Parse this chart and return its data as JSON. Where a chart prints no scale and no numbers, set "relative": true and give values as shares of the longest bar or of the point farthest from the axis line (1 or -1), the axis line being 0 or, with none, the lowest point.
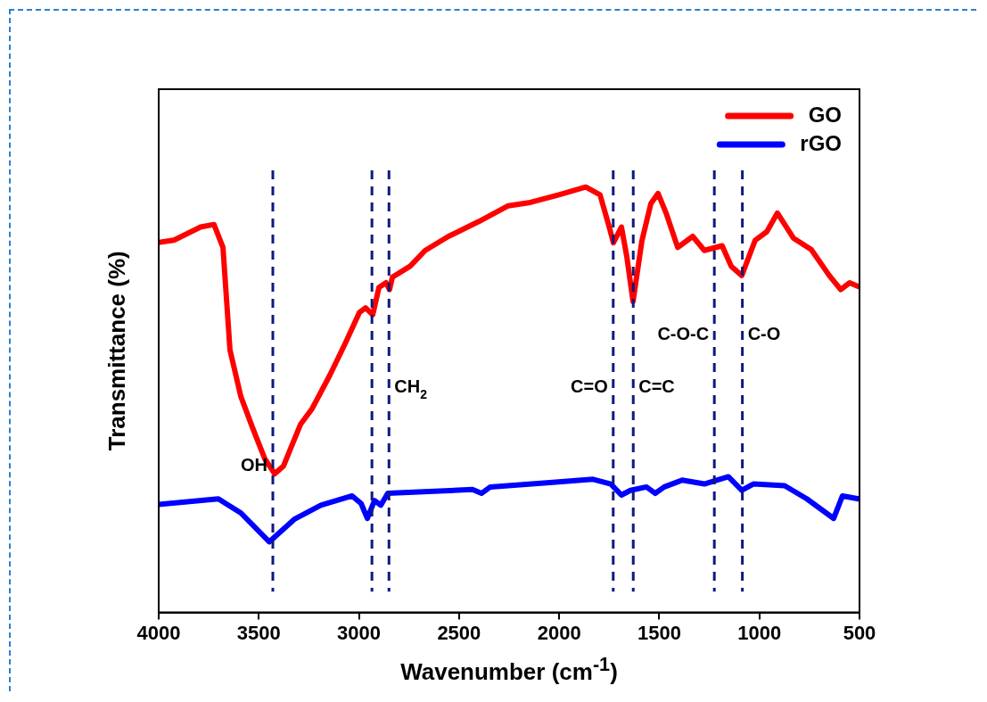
{
  "chart_data": {
    "type": "line",
    "relative": true,
    "xlabel": "Wavenumber (cm$^{-1}$)",
    "ylabel": "Transmittance (%)",
    "xlim": [
      4000,
      500
    ],
    "xticks": [
      4000,
      3500,
      3000,
      2500,
      2000,
      1500,
      1000,
      500
    ],
    "grid": false,
    "legend": "top right",
    "marker": "none",
    "line_style": "solid",
    "series": [
      {
        "name": "GO",
        "color": "#ff0000",
        "x": [
          4000,
          3924,
          3791,
          3724,
          3679,
          3644,
          3590,
          3532,
          3470,
          3421,
          3377,
          3292,
          3234,
          3145,
          3069,
          2998,
          2967,
          2931,
          2900,
          2865,
          2847,
          2833,
          2744,
          2669,
          2553,
          2401,
          2254,
          2152,
          2001,
          1867,
          1796,
          1751,
          1729,
          1689,
          1662,
          1631,
          1587,
          1542,
          1506,
          1466,
          1408,
          1333,
          1275,
          1186,
          1141,
          1088,
          1021,
          963,
          910,
          830,
          741,
          651,
          594,
          549,
          505
        ],
        "values": [
          0.87,
          0.875,
          0.906,
          0.912,
          0.858,
          0.617,
          0.508,
          0.435,
          0.361,
          0.326,
          0.344,
          0.442,
          0.479,
          0.558,
          0.632,
          0.705,
          0.716,
          0.7,
          0.764,
          0.775,
          0.759,
          0.788,
          0.814,
          0.851,
          0.884,
          0.919,
          0.956,
          0.963,
          0.982,
          1,
          0.982,
          0.908,
          0.869,
          0.906,
          0.836,
          0.731,
          0.873,
          0.961,
          0.985,
          0.939,
          0.858,
          0.884,
          0.851,
          0.862,
          0.814,
          0.792,
          0.875,
          0.895,
          0.939,
          0.88,
          0.853,
          0.792,
          0.759,
          0.775,
          0.766
        ]
      },
      {
        "name": "rGO",
        "color": "#0000ff",
        "x": [
          4000,
          3702,
          3590,
          3448,
          3323,
          3190,
          3034,
          2989,
          2958,
          2922,
          2891,
          2856,
          2433,
          2388,
          2344,
          2032,
          1831,
          1742,
          1689,
          1644,
          1564,
          1520,
          1475,
          1386,
          1275,
          1155,
          1088,
          1030,
          874,
          763,
          629,
          585,
          505
        ],
        "values": [
          0.254,
          0.267,
          0.234,
          0.166,
          0.219,
          0.252,
          0.274,
          0.256,
          0.221,
          0.263,
          0.252,
          0.28,
          0.289,
          0.28,
          0.295,
          0.306,
          0.313,
          0.302,
          0.276,
          0.287,
          0.295,
          0.28,
          0.295,
          0.311,
          0.302,
          0.319,
          0.287,
          0.302,
          0.298,
          0.267,
          0.221,
          0.274,
          0.267
        ]
      }
    ],
    "ref_lines": [
      {
        "axis": "x",
        "value": 3430,
        "label": "OH",
        "color": "#0d1b7a",
        "line_style": "dashed"
      },
      {
        "axis": "x",
        "value": 2935,
        "color": "#0d1b7a",
        "line_style": "dashed"
      },
      {
        "axis": "x",
        "value": 2850,
        "label": "CH$_{2}$",
        "color": "#0d1b7a",
        "line_style": "dashed"
      },
      {
        "axis": "x",
        "value": 1730,
        "label": "C=O",
        "color": "#0d1b7a",
        "line_style": "dashed"
      },
      {
        "axis": "x",
        "value": 1630,
        "label": "C=C",
        "color": "#0d1b7a",
        "line_style": "dashed"
      },
      {
        "axis": "x",
        "value": 1225,
        "label": "C-O-C",
        "color": "#0d1b7a",
        "line_style": "dashed"
      },
      {
        "axis": "x",
        "value": 1085,
        "label": "C-O",
        "color": "#0d1b7a",
        "line_style": "dashed"
      }
    ]
  }
}
